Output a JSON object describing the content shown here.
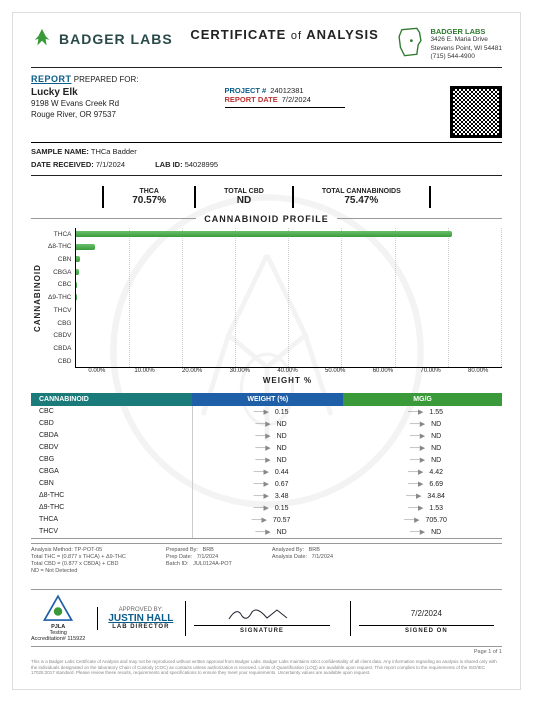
{
  "lab": {
    "name": "BADGER LABS",
    "addr1": "3426 E. Maria Drive",
    "addr2": "Stevens Point, WI 54481",
    "phone": "(715) 544-4900"
  },
  "doc_title_a": "CERTIFICATE",
  "doc_title_b": "of",
  "doc_title_c": "ANALYSIS",
  "prepared_label": "REPORT PREPARED FOR:",
  "client": {
    "name": "Lucky Elk",
    "line1": "9198 W Evans Creek Rd",
    "line2": "Rouge River, OR 97537"
  },
  "meta": {
    "project_label": "PROJECT #",
    "project": "24012381",
    "date_label": "REPORT DATE",
    "date": "7/2/2024"
  },
  "sample": {
    "name_label": "SAMPLE NAME:",
    "name": "THCa Badder",
    "recv_label": "DATE RECEIVED:",
    "recv": "7/1/2024",
    "labid_label": "LAB ID:",
    "labid": "54028995"
  },
  "summary": [
    {
      "label": "THCA",
      "value": "70.57%"
    },
    {
      "label": "TOTAL CBD",
      "value": "ND"
    },
    {
      "label": "TOTAL CANNABINOIDS",
      "value": "75.47%"
    }
  ],
  "chart": {
    "title": "CANNABINOID PROFILE",
    "ylab": "CANNABINOID",
    "xlab": "WEIGHT %",
    "xdomain": 80,
    "ticks": [
      "0.00%",
      "10.00%",
      "20.00%",
      "30.00%",
      "40.00%",
      "50.00%",
      "60.00%",
      "70.00%",
      "80.00%"
    ],
    "series": [
      {
        "name": "THCA",
        "v": 70.57
      },
      {
        "name": "Δ8-THC",
        "v": 3.48
      },
      {
        "name": "CBN",
        "v": 0.67
      },
      {
        "name": "CBGA",
        "v": 0.44
      },
      {
        "name": "CBC",
        "v": 0.15
      },
      {
        "name": "Δ9-THC",
        "v": 0.15
      },
      {
        "name": "THCV",
        "v": 0
      },
      {
        "name": "CBG",
        "v": 0
      },
      {
        "name": "CBDV",
        "v": 0
      },
      {
        "name": "CBDA",
        "v": 0
      },
      {
        "name": "CBD",
        "v": 0
      }
    ]
  },
  "table": {
    "headers": [
      "CANNABINOID",
      "WEIGHT (%)",
      "MG/G"
    ],
    "rows": [
      [
        "CBC",
        "0.15",
        "1.55"
      ],
      [
        "CBD",
        "ND",
        "ND"
      ],
      [
        "CBDA",
        "ND",
        "ND"
      ],
      [
        "CBDV",
        "ND",
        "ND"
      ],
      [
        "CBG",
        "ND",
        "ND"
      ],
      [
        "CBGA",
        "0.44",
        "4.42"
      ],
      [
        "CBN",
        "0.67",
        "6.69"
      ],
      [
        "Δ8-THC",
        "3.48",
        "34.84"
      ],
      [
        "Δ9-THC",
        "0.15",
        "1.53"
      ],
      [
        "THCA",
        "70.57",
        "705.70"
      ],
      [
        "THCV",
        "ND",
        "ND"
      ]
    ]
  },
  "analysis_notes": {
    "left": [
      "Analysis Method: TP-POT-05",
      "Total THC = (0.877 x THCA) + Δ9-THC",
      "Total CBD = (0.877 x CBDA) + CBD",
      "ND = Not Detected"
    ],
    "mid_labels": [
      "Prepared By:",
      "Prep Date:",
      "Batch ID:"
    ],
    "mid_vals": [
      "BRB",
      "7/1/2024",
      "JUL0124A-POT"
    ],
    "right_labels": [
      "Analyzed By:",
      "Analysis Date:"
    ],
    "right_vals": [
      "BRB",
      "7/1/2024"
    ]
  },
  "approval": {
    "by_label": "APPROVED BY:",
    "name": "JUSTIN HALL",
    "role": "LAB DIRECTOR",
    "sig_label": "SIGNATURE",
    "date": "7/2/2024",
    "date_label": "SIGNED ON",
    "accred": "Accreditation# 115922",
    "pjla": "PJLA",
    "pjla_sub": "Testing"
  },
  "page": "Page 1 of 1",
  "disclaimer": "This is a Badger Labs Certificate of Analysis and may not be reproduced without written approval from Badger Labs. Badger Labs maintains strict confidentiality of all client data. Any information regarding an analysis is shared only with the individuals designated on the laboratory Chain of Custody (COC) as contacts unless authorization is received. Limits of Quantification (LOQ) are available upon request. This report complies to the requirements of the ISO/IEC 17025:2017 standard. Please review these results, requirements and specifications to ensure they meet your requirements. Uncertainty values are available upon request."
}
